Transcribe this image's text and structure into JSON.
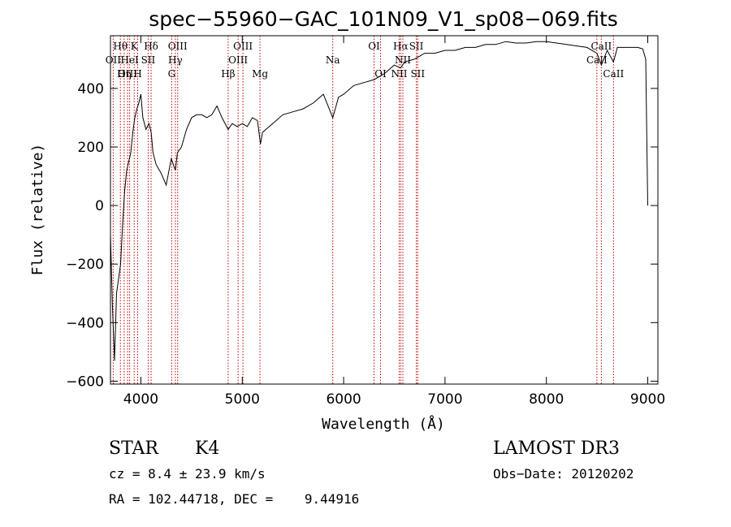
{
  "chart_data": {
    "type": "line",
    "title": "spec−55960−GAC_101N09_V1_sp08−069.fits",
    "xlabel": "Wavelength (Å)",
    "ylabel": "Flux (relative)",
    "xlim": [
      3700,
      9100
    ],
    "ylim": [
      -610,
      580
    ],
    "xticks": [
      {
        "value": 4000,
        "label": "4000"
      },
      {
        "value": 5000,
        "label": "5000"
      },
      {
        "value": 6000,
        "label": "6000"
      },
      {
        "value": 7000,
        "label": "7000"
      },
      {
        "value": 8000,
        "label": "8000"
      },
      {
        "value": 9000,
        "label": "9000"
      }
    ],
    "yticks": [
      {
        "value": -600,
        "label": "−600"
      },
      {
        "value": -400,
        "label": "−400"
      },
      {
        "value": -200,
        "label": "−200"
      },
      {
        "value": 0,
        "label": "0"
      },
      {
        "value": 200,
        "label": "200"
      },
      {
        "value": 400,
        "label": "400"
      }
    ],
    "series": [
      {
        "color": "#000000",
        "x": [
          3700,
          3720,
          3740,
          3760,
          3780,
          3800,
          3820,
          3840,
          3860,
          3880,
          3900,
          3920,
          3940,
          3960,
          3980,
          4000,
          4020,
          4050,
          4080,
          4101,
          4120,
          4150,
          4200,
          4250,
          4300,
          4340,
          4360,
          4400,
          4450,
          4500,
          4550,
          4600,
          4650,
          4700,
          4750,
          4800,
          4861,
          4900,
          4950,
          5000,
          5050,
          5100,
          5150,
          5180,
          5200,
          5300,
          5400,
          5500,
          5600,
          5700,
          5800,
          5893,
          5950,
          6000,
          6100,
          6200,
          6300,
          6400,
          6500,
          6563,
          6600,
          6700,
          6800,
          6900,
          7000,
          7100,
          7200,
          7300,
          7400,
          7500,
          7600,
          7700,
          7800,
          7900,
          8000,
          8100,
          8200,
          8300,
          8400,
          8498,
          8542,
          8600,
          8662,
          8700,
          8800,
          8900,
          8950,
          8980,
          9000
        ],
        "y": [
          -100,
          -350,
          -530,
          -300,
          -250,
          -200,
          -60,
          50,
          120,
          150,
          180,
          250,
          300,
          330,
          350,
          380,
          300,
          260,
          280,
          250,
          180,
          140,
          110,
          70,
          160,
          120,
          180,
          200,
          260,
          300,
          310,
          310,
          300,
          310,
          340,
          300,
          260,
          280,
          270,
          280,
          270,
          300,
          290,
          210,
          250,
          280,
          310,
          320,
          330,
          350,
          380,
          300,
          370,
          380,
          410,
          420,
          430,
          450,
          480,
          470,
          490,
          500,
          520,
          520,
          530,
          530,
          540,
          540,
          550,
          550,
          560,
          555,
          555,
          560,
          560,
          555,
          550,
          545,
          540,
          520,
          480,
          530,
          490,
          540,
          540,
          540,
          535,
          500,
          0
        ]
      }
    ],
    "spectral_lines": [
      {
        "label": "Hθ",
        "wavelength": 3798,
        "row": 1
      },
      {
        "label": "OII",
        "wavelength": 3727,
        "row": 2
      },
      {
        "label": "OIII",
        "wavelength": 3869,
        "row": 3
      },
      {
        "label": "Hη",
        "wavelength": 3835,
        "row": 3
      },
      {
        "label": "K",
        "wavelength": 3934,
        "row": 1
      },
      {
        "label": "HeI",
        "wavelength": 3889,
        "row": 2
      },
      {
        "label": "H",
        "wavelength": 3968,
        "row": 3
      },
      {
        "label": "Hδ",
        "wavelength": 4101,
        "row": 1
      },
      {
        "label": "SII",
        "wavelength": 4072,
        "row": 2
      },
      {
        "label": "OIII",
        "wavelength": 4363,
        "row": 1
      },
      {
        "label": "Hγ",
        "wavelength": 4340,
        "row": 2
      },
      {
        "label": "G",
        "wavelength": 4304,
        "row": 3
      },
      {
        "label": "Hβ",
        "wavelength": 4861,
        "row": 3
      },
      {
        "label": "OIII",
        "wavelength": 4959,
        "row": 2
      },
      {
        "label": "OIII",
        "wavelength": 5007,
        "row": 1
      },
      {
        "label": "Mg",
        "wavelength": 5175,
        "row": 3
      },
      {
        "label": "Na",
        "wavelength": 5893,
        "row": 2
      },
      {
        "label": "OI",
        "wavelength": 6300,
        "row": 1
      },
      {
        "label": "OI",
        "wavelength": 6364,
        "row": 3
      },
      {
        "label": "Hα",
        "wavelength": 6563,
        "row": 1
      },
      {
        "label": "NII",
        "wavelength": 6548,
        "row": 3
      },
      {
        "label": "NII",
        "wavelength": 6584,
        "row": 2
      },
      {
        "label": "SII",
        "wavelength": 6717,
        "row": 1
      },
      {
        "label": "SII",
        "wavelength": 6731,
        "row": 3
      },
      {
        "label": "CaII",
        "wavelength": 8498,
        "row": 2
      },
      {
        "label": "CaII",
        "wavelength": 8542,
        "row": 1
      },
      {
        "label": "CaII",
        "wavelength": 8662,
        "row": 3
      }
    ]
  },
  "info": {
    "class": "STAR",
    "subclass": "K4",
    "survey": "LAMOST DR3",
    "redshift": "cz = 8.4 ± 23.9 km/s",
    "obsdate": "Obs−Date: 20120202",
    "coords": "RA = 102.44718, DEC =    9.44916"
  }
}
